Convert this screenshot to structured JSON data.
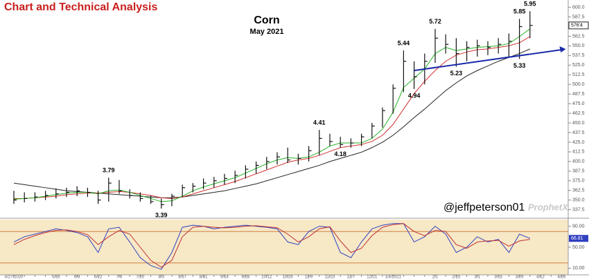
{
  "header": {
    "title": "Chart and Technical Analysis"
  },
  "chart_data": [
    {
      "type": "ohlc",
      "title": "Corn",
      "subtitle": "May 2021",
      "categories": [
        "4/27/2020",
        null,
        null,
        null,
        "5/26",
        null,
        "6/8",
        null,
        "6/22",
        null,
        "7/6",
        null,
        "7/20",
        null,
        "8/3",
        null,
        "8/17",
        null,
        "8/31",
        null,
        "9/14",
        null,
        "9/28",
        null,
        "10/12",
        null,
        "10/26",
        null,
        "11/9",
        null,
        "11/23",
        null,
        "12/7",
        null,
        "12/21",
        null,
        "1/4/2021",
        null,
        null,
        null,
        "2/1",
        null,
        "2/15",
        null,
        "3/1",
        null,
        "3/15",
        null,
        "3/29",
        null,
        "4/12",
        null,
        "4/26"
      ],
      "high": [
        362,
        360,
        360,
        362,
        365,
        366,
        368,
        366,
        362,
        379,
        376,
        364,
        360,
        356,
        352,
        358,
        370,
        372,
        378,
        380,
        384,
        388,
        395,
        400,
        406,
        412,
        418,
        410,
        420,
        441,
        436,
        432,
        430,
        436,
        450,
        470,
        500,
        544,
        530,
        540,
        572,
        565,
        560,
        556,
        558,
        556,
        560,
        566,
        585,
        595,
        null,
        null,
        null
      ],
      "low": [
        345,
        347,
        348,
        350,
        352,
        354,
        355,
        354,
        345,
        348,
        358,
        352,
        348,
        345,
        339,
        342,
        354,
        360,
        364,
        366,
        370,
        372,
        378,
        384,
        390,
        396,
        398,
        396,
        400,
        408,
        420,
        418,
        418,
        420,
        430,
        444,
        462,
        490,
        494,
        500,
        528,
        540,
        523,
        530,
        536,
        538,
        540,
        536,
        533,
        560,
        null,
        null,
        null
      ],
      "close": [
        350,
        352,
        354,
        356,
        358,
        360,
        362,
        360,
        350,
        372,
        362,
        356,
        352,
        348,
        344,
        355,
        366,
        368,
        372,
        375,
        378,
        382,
        390,
        395,
        400,
        406,
        402,
        404,
        414,
        430,
        426,
        422,
        424,
        432,
        446,
        466,
        495,
        530,
        510,
        530,
        560,
        552,
        540,
        548,
        550,
        548,
        552,
        556,
        575,
        576.5,
        null,
        null,
        null
      ],
      "last_price": {
        "value": 576.5,
        "label": "576'4"
      },
      "bar_color": "#111111",
      "lines": [
        {
          "color": "#222222",
          "values": [
            372,
            370,
            368,
            366,
            364,
            362,
            361,
            360,
            359,
            358,
            357,
            356,
            355,
            354,
            353,
            353,
            354,
            356,
            358,
            360,
            362,
            365,
            368,
            371,
            375,
            379,
            383,
            387,
            391,
            395,
            400,
            404,
            408,
            412,
            418,
            425,
            434,
            445,
            457,
            468,
            480,
            492,
            502,
            511,
            518,
            524,
            530,
            535,
            540,
            546,
            null,
            null,
            null
          ]
        },
        {
          "color": "#d03030",
          "values": [
            352,
            352,
            353,
            354,
            355,
            357,
            358,
            359,
            359,
            360,
            361,
            360,
            358,
            356,
            353,
            352,
            354,
            358,
            362,
            366,
            370,
            374,
            379,
            384,
            389,
            394,
            399,
            402,
            404,
            408,
            413,
            418,
            420,
            422,
            426,
            434,
            448,
            468,
            488,
            504,
            518,
            530,
            538,
            542,
            545,
            546,
            548,
            550,
            554,
            562,
            null,
            null,
            null
          ]
        },
        {
          "color": "#22b022",
          "values": [
            351,
            352,
            353,
            355,
            357,
            359,
            360,
            360,
            358,
            362,
            363,
            360,
            356,
            352,
            348,
            349,
            355,
            362,
            367,
            371,
            375,
            379,
            385,
            391,
            397,
            402,
            405,
            404,
            406,
            412,
            420,
            424,
            424,
            424,
            430,
            442,
            464,
            496,
            508,
            520,
            540,
            548,
            544,
            546,
            548,
            549,
            550,
            553,
            562,
            572,
            null,
            null,
            null
          ]
        }
      ],
      "annotations": [
        {
          "x": 9,
          "value": 379,
          "label": "3.79"
        },
        {
          "x": 14,
          "value": 339,
          "label": "3.39"
        },
        {
          "x": 29,
          "value": 441,
          "label": "4.41"
        },
        {
          "x": 31,
          "value": 418,
          "label": "4.18"
        },
        {
          "x": 37,
          "value": 544,
          "label": "5.44"
        },
        {
          "x": 38,
          "value": 494,
          "label": "4.94"
        },
        {
          "x": 40,
          "value": 572,
          "label": "5.72"
        },
        {
          "x": 42,
          "value": 523,
          "label": "5.23"
        },
        {
          "x": 48,
          "value": 585,
          "label": "5.85"
        },
        {
          "x": 48,
          "value": 533,
          "label": "5.33"
        },
        {
          "x": 49,
          "value": 595,
          "label": "5.95"
        }
      ],
      "trendline": {
        "x": [
          38,
          52
        ],
        "values": [
          518,
          545
        ],
        "color": "#1a2aa8"
      },
      "ylim": [
        330,
        605
      ],
      "yticks": [
        {
          "value": 337.5,
          "label": "337.5"
        },
        {
          "value": 350,
          "label": "350.0"
        },
        {
          "value": 362.5,
          "label": "362.5"
        },
        {
          "value": 375,
          "label": "375.0"
        },
        {
          "value": 387.5,
          "label": "387.5"
        },
        {
          "value": 400,
          "label": "400.0"
        },
        {
          "value": 412.5,
          "label": "412.5"
        },
        {
          "value": 425,
          "label": "425.0"
        },
        {
          "value": 437.5,
          "label": "437.5"
        },
        {
          "value": 450,
          "label": "450.0"
        },
        {
          "value": 462.5,
          "label": "462.5"
        },
        {
          "value": 475,
          "label": "475.0"
        },
        {
          "value": 487.5,
          "label": "487.5"
        },
        {
          "value": 500,
          "label": "500.0"
        },
        {
          "value": 512.5,
          "label": "512.5"
        },
        {
          "value": 525,
          "label": "525.0"
        },
        {
          "value": 537.5,
          "label": "537.5"
        },
        {
          "value": 550,
          "label": "550.0"
        },
        {
          "value": 562.5,
          "label": "562.5"
        },
        {
          "value": 575,
          "label": "575.0"
        },
        {
          "value": 587.5,
          "label": "587.5"
        },
        {
          "value": 600,
          "label": "600.0"
        }
      ],
      "watermark": "@jeffpeterson01",
      "logo": "ProphetX"
    },
    {
      "type": "stochastic",
      "series": [
        {
          "color": "#3040c0",
          "values": [
            60,
            70,
            75,
            80,
            85,
            82,
            78,
            70,
            40,
            85,
            88,
            60,
            30,
            15,
            8,
            40,
            88,
            92,
            90,
            85,
            88,
            90,
            92,
            90,
            88,
            85,
            60,
            55,
            80,
            90,
            88,
            40,
            30,
            60,
            85,
            92,
            95,
            95,
            60,
            70,
            90,
            75,
            40,
            50,
            70,
            60,
            65,
            40,
            75,
            66.81,
            null,
            null,
            null
          ]
        },
        {
          "color": "#c03030",
          "values": [
            55,
            65,
            72,
            78,
            82,
            83,
            80,
            74,
            55,
            70,
            82,
            75,
            50,
            25,
            12,
            25,
            70,
            88,
            90,
            88,
            87,
            88,
            90,
            91,
            89,
            87,
            75,
            60,
            70,
            85,
            89,
            62,
            40,
            48,
            72,
            88,
            93,
            95,
            80,
            72,
            82,
            80,
            55,
            48,
            60,
            62,
            63,
            52,
            62,
            65,
            null,
            null,
            null
          ]
        }
      ],
      "levels": [
        80,
        20
      ],
      "ylim": [
        0,
        100
      ],
      "yticks": [
        {
          "value": 10,
          "label": "10.00"
        },
        {
          "value": 50,
          "label": "50.00"
        },
        {
          "value": 90,
          "label": "90.00"
        }
      ]
    }
  ]
}
